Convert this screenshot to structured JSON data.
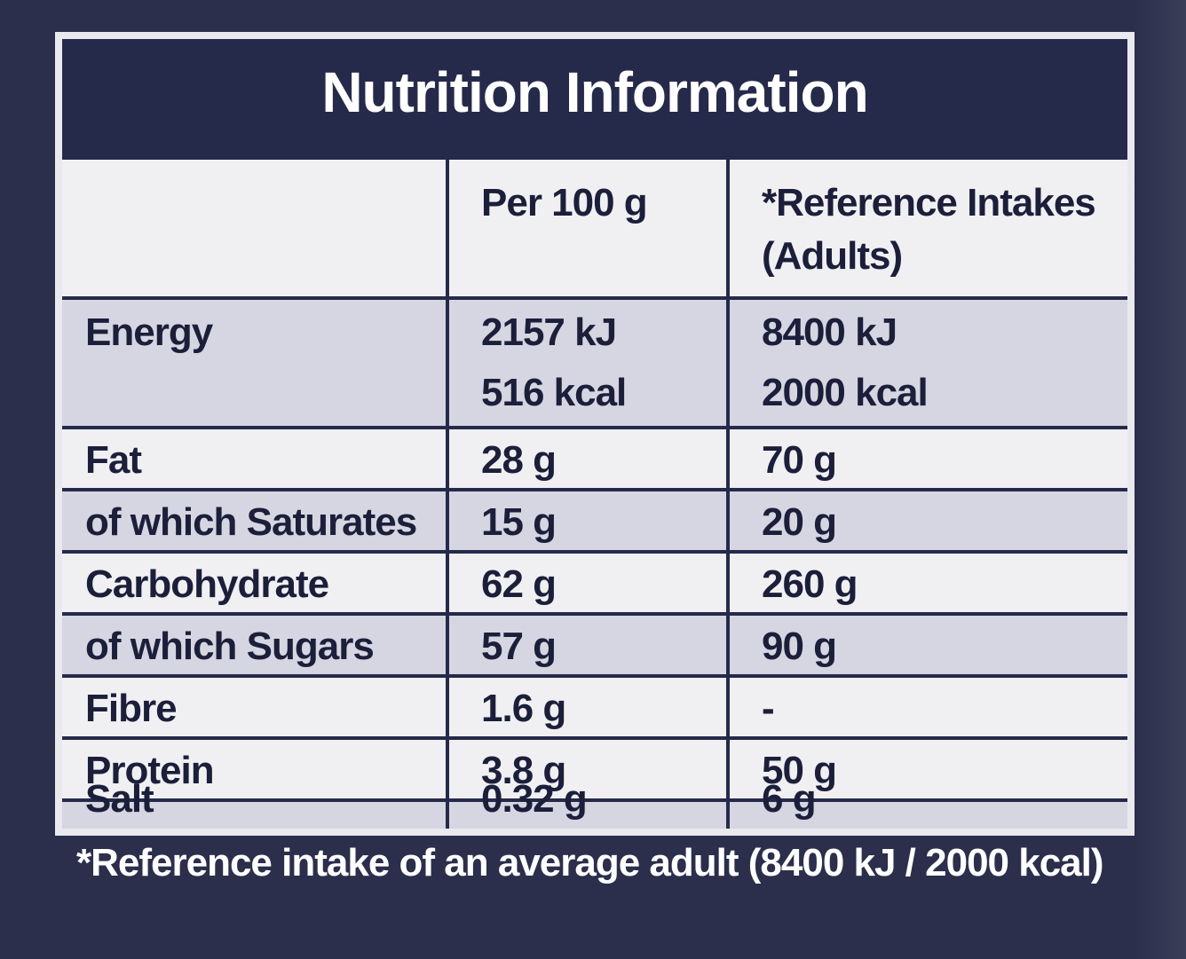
{
  "title": "Nutrition Information",
  "headers": {
    "col2": "Per 100 g",
    "col3_line1": "*Reference Intakes",
    "col3_line2": "(Adults)"
  },
  "rows": [
    {
      "name": "Energy",
      "per100_line1": "2157 kJ",
      "per100_line2": "516 kcal",
      "ref_line1": "8400 kJ",
      "ref_line2": "2000 kcal"
    },
    {
      "name": "Fat",
      "per100": "28 g",
      "ref": "70 g"
    },
    {
      "name": "of which Saturates",
      "per100": "15 g",
      "ref": "20 g"
    },
    {
      "name": "Carbohydrate",
      "per100": "62 g",
      "ref": "260 g"
    },
    {
      "name": "of which Sugars",
      "per100": "57 g",
      "ref": "90 g"
    },
    {
      "name": "Fibre",
      "per100": "1.6 g",
      "ref": "-"
    },
    {
      "name": "Protein",
      "per100": "3.8 g",
      "ref": "50 g"
    },
    {
      "name": "Salt",
      "per100": "0.32 g",
      "ref": "6 g"
    }
  ],
  "footnote": "*Reference intake of an average adult (8400 kJ / 2000 kcal)",
  "colors": {
    "navy": "#262a4a",
    "background": "#2b2f4c",
    "shade": "#d6d6e2",
    "light": "#f0f0f3"
  }
}
